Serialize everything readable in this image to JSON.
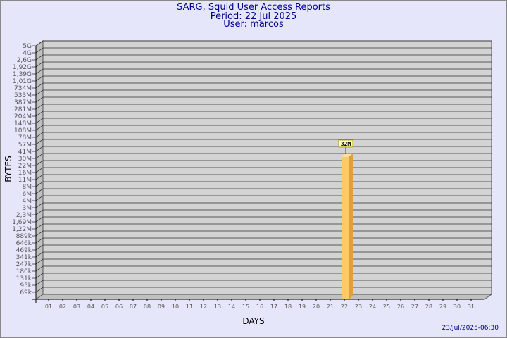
{
  "chart_data": {
    "type": "bar",
    "title": "SARG, Squid User Access Reports",
    "subtitle": [
      "Period: 22 Jul 2025",
      "User: marcos"
    ],
    "xlabel": "DAYS",
    "ylabel": "BYTES",
    "y_scale": "log",
    "y_tick_labels": [
      "5G",
      "4G",
      "2,6G",
      "1,92G",
      "1,39G",
      "1,01G",
      "734M",
      "533M",
      "387M",
      "281M",
      "204M",
      "148M",
      "108M",
      "78M",
      "57M",
      "41M",
      "30M",
      "22M",
      "16M",
      "11M",
      "8M",
      "6M",
      "4M",
      "3M",
      "2,3M",
      "1,69M",
      "1,22M",
      "889k",
      "646k",
      "469k",
      "341k",
      "247k",
      "180k",
      "131k",
      "95k",
      "69k"
    ],
    "categories": [
      "01",
      "02",
      "03",
      "04",
      "05",
      "06",
      "07",
      "08",
      "09",
      "10",
      "11",
      "12",
      "13",
      "14",
      "15",
      "16",
      "17",
      "18",
      "19",
      "20",
      "21",
      "22",
      "23",
      "24",
      "25",
      "26",
      "27",
      "28",
      "29",
      "30",
      "31"
    ],
    "bars": [
      {
        "day": "22",
        "value_bytes": 32000000,
        "label": "32M"
      }
    ],
    "grid": true,
    "colors": {
      "bar": "#ffc966",
      "bar_side": "#e0a040",
      "plot_bg": "#d3d3d3",
      "title": "#00008b"
    }
  },
  "footer": "23/Jul/2025-06:30"
}
